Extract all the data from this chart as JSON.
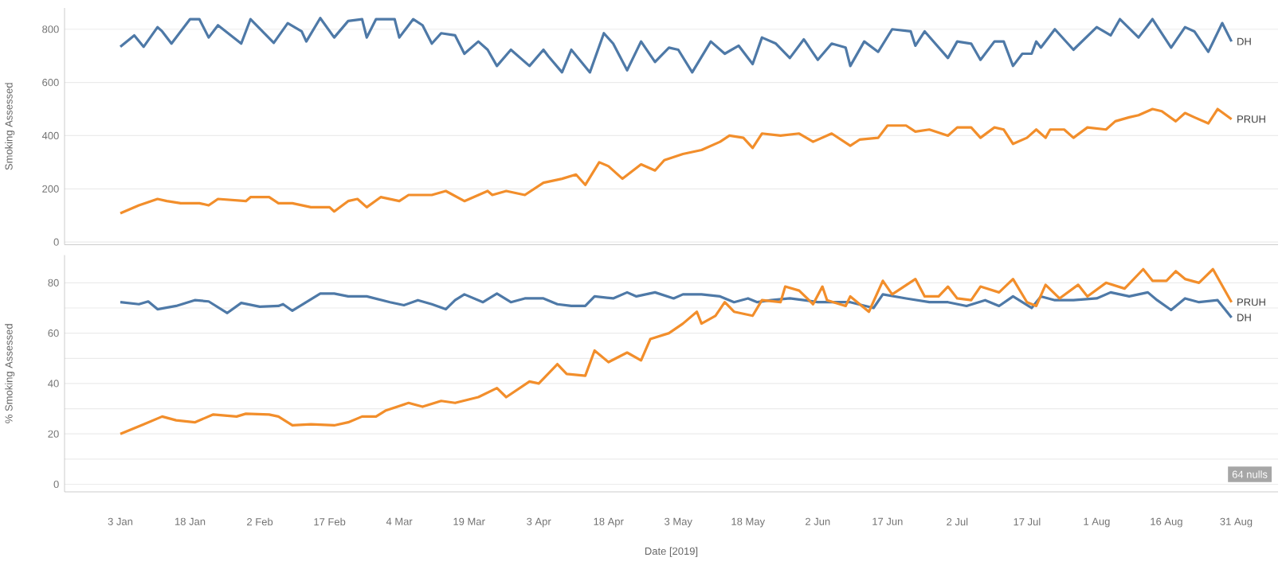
{
  "chart_data": [
    {
      "type": "line",
      "ylabel": "Smoking Assessed",
      "grid": "y",
      "tick_labels": "y",
      "xlim": [
        "2018-12-22",
        "2019-09-09"
      ],
      "ylim": [
        -10,
        880
      ],
      "yticks": [
        0,
        200,
        400,
        600,
        800
      ],
      "series": [
        {
          "name": "DH",
          "color": "#4e79a7",
          "x": [
            "2019-01-03",
            "2019-01-06",
            "2019-01-08",
            "2019-01-11",
            "2019-01-12",
            "2019-01-14",
            "2019-01-18",
            "2019-01-20",
            "2019-01-22",
            "2019-01-24",
            "2019-01-29",
            "2019-01-31",
            "2019-02-05",
            "2019-02-08",
            "2019-02-11",
            "2019-02-12",
            "2019-02-15",
            "2019-02-18",
            "2019-02-21",
            "2019-02-24",
            "2019-02-25",
            "2019-02-27",
            "2019-03-03",
            "2019-03-04",
            "2019-03-07",
            "2019-03-09",
            "2019-03-11",
            "2019-03-13",
            "2019-03-16",
            "2019-03-18",
            "2019-03-21",
            "2019-03-23",
            "2019-03-25",
            "2019-03-28",
            "2019-04-01",
            "2019-04-04",
            "2019-04-05",
            "2019-04-08",
            "2019-04-10",
            "2019-04-14",
            "2019-04-17",
            "2019-04-19",
            "2019-04-22",
            "2019-04-25",
            "2019-04-28",
            "2019-05-01",
            "2019-05-03",
            "2019-05-06",
            "2019-05-10",
            "2019-05-13",
            "2019-05-16",
            "2019-05-19",
            "2019-05-21",
            "2019-05-24",
            "2019-05-27",
            "2019-05-30",
            "2019-06-02",
            "2019-06-05",
            "2019-06-08",
            "2019-06-09",
            "2019-06-12",
            "2019-06-15",
            "2019-06-18",
            "2019-06-22",
            "2019-06-23",
            "2019-06-25",
            "2019-06-30",
            "2019-07-02",
            "2019-07-05",
            "2019-07-07",
            "2019-07-10",
            "2019-07-12",
            "2019-07-14",
            "2019-07-16",
            "2019-07-18",
            "2019-07-19",
            "2019-07-20",
            "2019-07-23",
            "2019-07-27",
            "2019-08-01",
            "2019-08-04",
            "2019-08-06",
            "2019-08-10",
            "2019-08-13",
            "2019-08-17",
            "2019-08-20",
            "2019-08-22",
            "2019-08-25",
            "2019-08-28",
            "2019-08-30"
          ],
          "values": [
            734,
            777,
            734,
            808,
            792,
            746,
            838,
            838,
            769,
            815,
            746,
            838,
            749,
            823,
            792,
            754,
            842,
            769,
            831,
            838,
            769,
            838,
            838,
            769,
            838,
            815,
            746,
            785,
            777,
            708,
            754,
            723,
            662,
            723,
            662,
            723,
            700,
            638,
            723,
            638,
            785,
            746,
            646,
            754,
            677,
            731,
            723,
            638,
            754,
            708,
            738,
            669,
            769,
            746,
            692,
            762,
            685,
            746,
            731,
            662,
            754,
            715,
            800,
            792,
            738,
            792,
            692,
            754,
            746,
            685,
            754,
            754,
            662,
            708,
            708,
            754,
            731,
            800,
            723,
            808,
            777,
            838,
            769,
            838,
            731,
            808,
            792,
            715,
            823,
            754
          ]
        },
        {
          "name": "PRUH",
          "color": "#f28e2b",
          "x": [
            "2019-01-03",
            "2019-01-07",
            "2019-01-11",
            "2019-01-13",
            "2019-01-16",
            "2019-01-20",
            "2019-01-22",
            "2019-01-24",
            "2019-01-30",
            "2019-01-31",
            "2019-02-04",
            "2019-02-06",
            "2019-02-09",
            "2019-02-13",
            "2019-02-17",
            "2019-02-18",
            "2019-02-21",
            "2019-02-23",
            "2019-02-25",
            "2019-02-28",
            "2019-03-04",
            "2019-03-06",
            "2019-03-11",
            "2019-03-14",
            "2019-03-18",
            "2019-03-23",
            "2019-03-24",
            "2019-03-27",
            "2019-03-31",
            "2019-04-04",
            "2019-04-08",
            "2019-04-11",
            "2019-04-13",
            "2019-04-16",
            "2019-04-18",
            "2019-04-21",
            "2019-04-25",
            "2019-04-28",
            "2019-04-30",
            "2019-05-04",
            "2019-05-08",
            "2019-05-12",
            "2019-05-14",
            "2019-05-17",
            "2019-05-19",
            "2019-05-21",
            "2019-05-25",
            "2019-05-29",
            "2019-06-01",
            "2019-06-05",
            "2019-06-09",
            "2019-06-11",
            "2019-06-15",
            "2019-06-17",
            "2019-06-21",
            "2019-06-23",
            "2019-06-26",
            "2019-06-30",
            "2019-07-02",
            "2019-07-05",
            "2019-07-07",
            "2019-07-10",
            "2019-07-12",
            "2019-07-14",
            "2019-07-17",
            "2019-07-19",
            "2019-07-21",
            "2019-07-22",
            "2019-07-25",
            "2019-07-27",
            "2019-07-30",
            "2019-08-03",
            "2019-08-05",
            "2019-08-08",
            "2019-08-10",
            "2019-08-13",
            "2019-08-15",
            "2019-08-18",
            "2019-08-20",
            "2019-08-22",
            "2019-08-25",
            "2019-08-27",
            "2019-08-30"
          ],
          "values": [
            108,
            138,
            162,
            154,
            146,
            146,
            138,
            162,
            154,
            169,
            169,
            146,
            146,
            131,
            131,
            115,
            154,
            162,
            131,
            169,
            154,
            177,
            177,
            192,
            154,
            192,
            177,
            192,
            177,
            223,
            238,
            254,
            215,
            300,
            285,
            238,
            292,
            269,
            308,
            331,
            346,
            377,
            400,
            392,
            354,
            408,
            400,
            408,
            377,
            408,
            362,
            385,
            392,
            438,
            438,
            415,
            423,
            400,
            431,
            431,
            392,
            431,
            423,
            369,
            392,
            423,
            392,
            423,
            423,
            392,
            431,
            423,
            454,
            469,
            477,
            500,
            492,
            454,
            485,
            469,
            446,
            500,
            462
          ]
        }
      ]
    },
    {
      "type": "line",
      "ylabel": "% Smoking Assessed",
      "xlabel": "Date [2019]",
      "grid": "y",
      "xlim": [
        "2018-12-22",
        "2019-09-09"
      ],
      "xticks": [
        {
          "value": "2019-01-03",
          "label": "3 Jan"
        },
        {
          "value": "2019-01-18",
          "label": "18 Jan"
        },
        {
          "value": "2019-02-02",
          "label": "2 Feb"
        },
        {
          "value": "2019-02-17",
          "label": "17 Feb"
        },
        {
          "value": "2019-03-04",
          "label": "4 Mar"
        },
        {
          "value": "2019-03-19",
          "label": "19 Mar"
        },
        {
          "value": "2019-04-03",
          "label": "3 Apr"
        },
        {
          "value": "2019-04-18",
          "label": "18 Apr"
        },
        {
          "value": "2019-05-03",
          "label": "3 May"
        },
        {
          "value": "2019-05-18",
          "label": "18 May"
        },
        {
          "value": "2019-06-02",
          "label": "2 Jun"
        },
        {
          "value": "2019-06-17",
          "label": "17 Jun"
        },
        {
          "value": "2019-07-02",
          "label": "2 Jul"
        },
        {
          "value": "2019-07-17",
          "label": "17 Jul"
        },
        {
          "value": "2019-08-01",
          "label": "1 Aug"
        },
        {
          "value": "2019-08-16",
          "label": "16 Aug"
        },
        {
          "value": "2019-08-31",
          "label": "31 Aug"
        }
      ],
      "ylim": [
        -3,
        91
      ],
      "yticks": [
        0,
        {
          "value": 10,
          "label": null
        },
        20,
        {
          "value": 30,
          "label": null
        },
        40,
        {
          "value": 50,
          "label": null
        },
        60,
        {
          "value": 70,
          "label": null
        },
        80
      ],
      "annotations": [
        "64 nulls"
      ],
      "series": [
        {
          "name": "DH",
          "color": "#4e79a7",
          "x": [
            "2019-01-03",
            "2019-01-07",
            "2019-01-09",
            "2019-01-11",
            "2019-01-15",
            "2019-01-19",
            "2019-01-22",
            "2019-01-26",
            "2019-01-29",
            "2019-02-02",
            "2019-02-06",
            "2019-02-07",
            "2019-02-09",
            "2019-02-12",
            "2019-02-15",
            "2019-02-18",
            "2019-02-21",
            "2019-02-25",
            "2019-03-02",
            "2019-03-05",
            "2019-03-08",
            "2019-03-11",
            "2019-03-14",
            "2019-03-16",
            "2019-03-18",
            "2019-03-22",
            "2019-03-25",
            "2019-03-28",
            "2019-03-31",
            "2019-04-04",
            "2019-04-07",
            "2019-04-10",
            "2019-04-13",
            "2019-04-15",
            "2019-04-19",
            "2019-04-22",
            "2019-04-24",
            "2019-04-28",
            "2019-05-02",
            "2019-05-04",
            "2019-05-08",
            "2019-05-12",
            "2019-05-15",
            "2019-05-18",
            "2019-05-20",
            "2019-05-23",
            "2019-05-27",
            "2019-05-30",
            "2019-06-02",
            "2019-06-06",
            "2019-06-09",
            "2019-06-14",
            "2019-06-16",
            "2019-06-21",
            "2019-06-26",
            "2019-06-30",
            "2019-07-04",
            "2019-07-08",
            "2019-07-11",
            "2019-07-14",
            "2019-07-18",
            "2019-07-20",
            "2019-07-23",
            "2019-07-27",
            "2019-08-01",
            "2019-08-04",
            "2019-08-08",
            "2019-08-12",
            "2019-08-14",
            "2019-08-17",
            "2019-08-20",
            "2019-08-23",
            "2019-08-27",
            "2019-08-30"
          ],
          "values": [
            72.3,
            71.5,
            72.6,
            69.5,
            70.8,
            73.1,
            72.6,
            68,
            72,
            70.5,
            70.8,
            71.5,
            68.9,
            72.3,
            75.7,
            75.7,
            74.6,
            74.6,
            72.3,
            71.1,
            73.1,
            71.5,
            69.5,
            73.1,
            75.4,
            72.3,
            75.7,
            72.3,
            73.8,
            73.8,
            71.5,
            70.8,
            70.8,
            74.6,
            73.8,
            76.2,
            74.6,
            76.2,
            73.8,
            75.4,
            75.4,
            74.6,
            72.3,
            73.8,
            72.3,
            73.1,
            73.8,
            73.1,
            72.3,
            72.3,
            72.3,
            70,
            75.4,
            73.8,
            72.3,
            72.3,
            70.8,
            73.1,
            70.8,
            74.6,
            70,
            74.6,
            73.1,
            73.1,
            73.8,
            76.2,
            74.6,
            76.2,
            73.1,
            69.2,
            73.8,
            72.3,
            73.1,
            66.2
          ]
        },
        {
          "name": "PRUH",
          "color": "#f28e2b",
          "x": [
            "2019-01-03",
            "2019-01-08",
            "2019-01-12",
            "2019-01-15",
            "2019-01-19",
            "2019-01-23",
            "2019-01-28",
            "2019-01-30",
            "2019-02-04",
            "2019-02-06",
            "2019-02-09",
            "2019-02-13",
            "2019-02-18",
            "2019-02-21",
            "2019-02-24",
            "2019-02-27",
            "2019-03-01",
            "2019-03-06",
            "2019-03-09",
            "2019-03-13",
            "2019-03-16",
            "2019-03-21",
            "2019-03-25",
            "2019-03-27",
            "2019-04-01",
            "2019-04-03",
            "2019-04-07",
            "2019-04-09",
            "2019-04-13",
            "2019-04-15",
            "2019-04-18",
            "2019-04-22",
            "2019-04-25",
            "2019-04-27",
            "2019-05-01",
            "2019-05-04",
            "2019-05-07",
            "2019-05-08",
            "2019-05-11",
            "2019-05-13",
            "2019-05-15",
            "2019-05-19",
            "2019-05-21",
            "2019-05-25",
            "2019-05-26",
            "2019-05-29",
            "2019-06-01",
            "2019-06-03",
            "2019-06-04",
            "2019-06-08",
            "2019-06-09",
            "2019-06-13",
            "2019-06-16",
            "2019-06-18",
            "2019-06-23",
            "2019-06-25",
            "2019-06-28",
            "2019-06-30",
            "2019-07-02",
            "2019-07-05",
            "2019-07-07",
            "2019-07-11",
            "2019-07-14",
            "2019-07-17",
            "2019-07-19",
            "2019-07-21",
            "2019-07-24",
            "2019-07-28",
            "2019-07-30",
            "2019-08-03",
            "2019-08-07",
            "2019-08-11",
            "2019-08-13",
            "2019-08-16",
            "2019-08-18",
            "2019-08-20",
            "2019-08-23",
            "2019-08-26",
            "2019-08-30"
          ],
          "values": [
            20,
            23.8,
            26.9,
            25.4,
            24.6,
            27.7,
            26.9,
            28,
            27.7,
            26.9,
            23.4,
            23.8,
            23.4,
            24.6,
            26.9,
            26.9,
            29.2,
            32.3,
            30.8,
            33.1,
            32.3,
            34.6,
            38.2,
            34.6,
            40.8,
            40,
            47.7,
            43.8,
            43.1,
            53.1,
            48.5,
            52.3,
            49.2,
            57.7,
            60,
            63.8,
            68.5,
            63.8,
            66.9,
            72.3,
            68.5,
            66.9,
            73.1,
            72.3,
            78.5,
            76.9,
            71.5,
            78.5,
            73.1,
            70.8,
            74.6,
            68.5,
            80.8,
            75.4,
            81.5,
            74.6,
            74.6,
            78.5,
            73.8,
            73.1,
            78.5,
            76.2,
            81.5,
            72.3,
            70.8,
            79.2,
            73.8,
            79.2,
            74.6,
            80,
            77.7,
            85.4,
            80.8,
            80.8,
            84.6,
            81.5,
            80,
            85.4,
            72.3
          ]
        }
      ]
    }
  ]
}
